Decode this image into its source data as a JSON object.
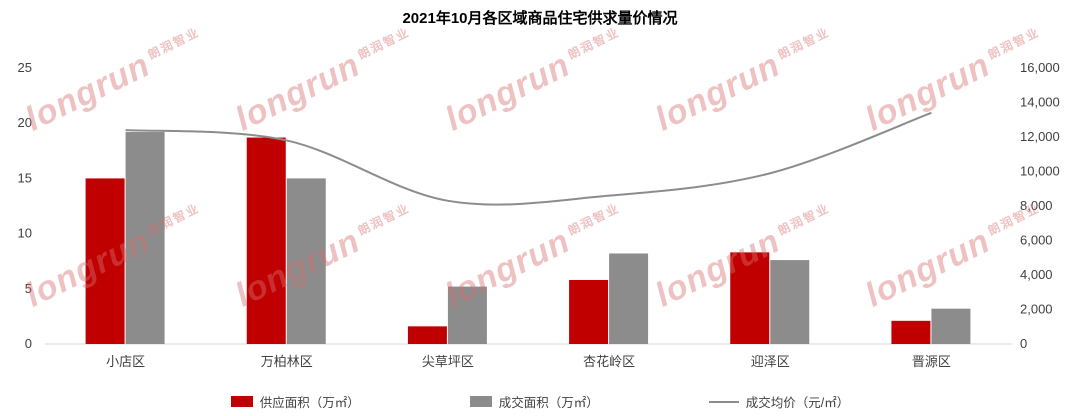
{
  "title": "2021年10月各区域商品住宅供求量价情况",
  "watermark": {
    "text_en": "longrun",
    "text_cn": "朗润智业",
    "color": "#d96f6f"
  },
  "chart_data": {
    "type": "bar+line combo",
    "categories": [
      "小店区",
      "万柏林区",
      "尖草坪区",
      "杏花岭区",
      "迎泽区",
      "晋源区"
    ],
    "series": [
      {
        "name": "供应面积（万㎡）",
        "type": "bar",
        "axis": "left",
        "color": "#c00000",
        "values": [
          15.0,
          18.7,
          1.6,
          5.8,
          8.3,
          2.1
        ]
      },
      {
        "name": "成交面积（万㎡）",
        "type": "bar",
        "axis": "left",
        "color": "#8c8c8c",
        "values": [
          19.2,
          15.0,
          5.2,
          8.2,
          7.6,
          3.2
        ]
      },
      {
        "name": "成交均价（元/㎡）",
        "type": "line",
        "axis": "right",
        "color": "#8c8c8c",
        "values": [
          12400,
          11800,
          8300,
          8600,
          9900,
          13400
        ]
      }
    ],
    "left_axis": {
      "min": 0,
      "max": 25,
      "step": 5,
      "ticks": [
        "0",
        "5",
        "10",
        "15",
        "20",
        "25"
      ]
    },
    "right_axis": {
      "min": 0,
      "max": 16000,
      "step": 2000,
      "ticks": [
        "0",
        "2,000",
        "4,000",
        "6,000",
        "8,000",
        "10,000",
        "12,000",
        "14,000",
        "16,000"
      ]
    },
    "legend_position": "bottom",
    "grid": false,
    "axis_line_color": "#d9d9d9",
    "tick_label_color": "#404040"
  }
}
